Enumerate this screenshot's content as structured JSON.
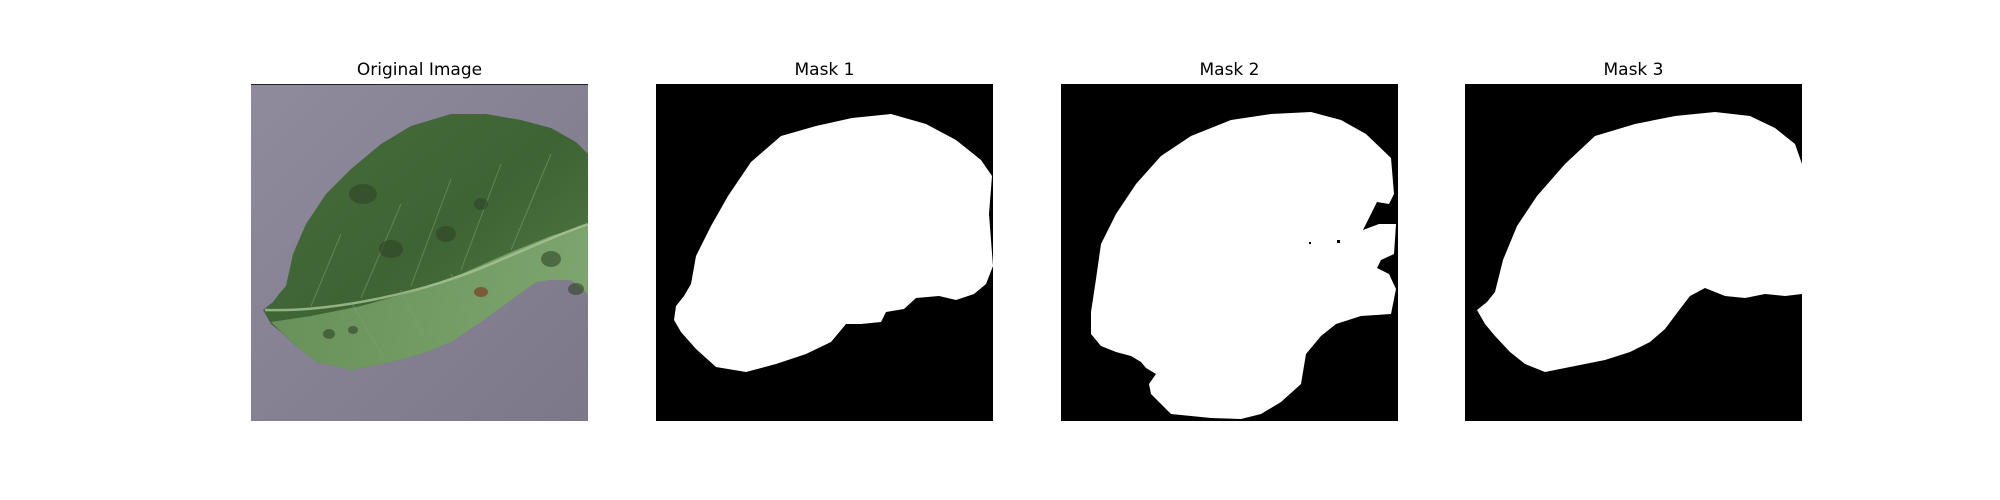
{
  "figure": {
    "panels": [
      {
        "title": "Original Image",
        "kind": "photo"
      },
      {
        "title": "Mask 1",
        "kind": "mask"
      },
      {
        "title": "Mask 2",
        "kind": "mask"
      },
      {
        "title": "Mask 3",
        "kind": "mask"
      }
    ],
    "colors": {
      "background": "#8e8798",
      "leaf_dark": "#3f6536",
      "leaf_mid": "#5f8a52",
      "leaf_light": "#86ad76",
      "mask_foreground": "#ffffff",
      "mask_background": "#000000"
    }
  }
}
